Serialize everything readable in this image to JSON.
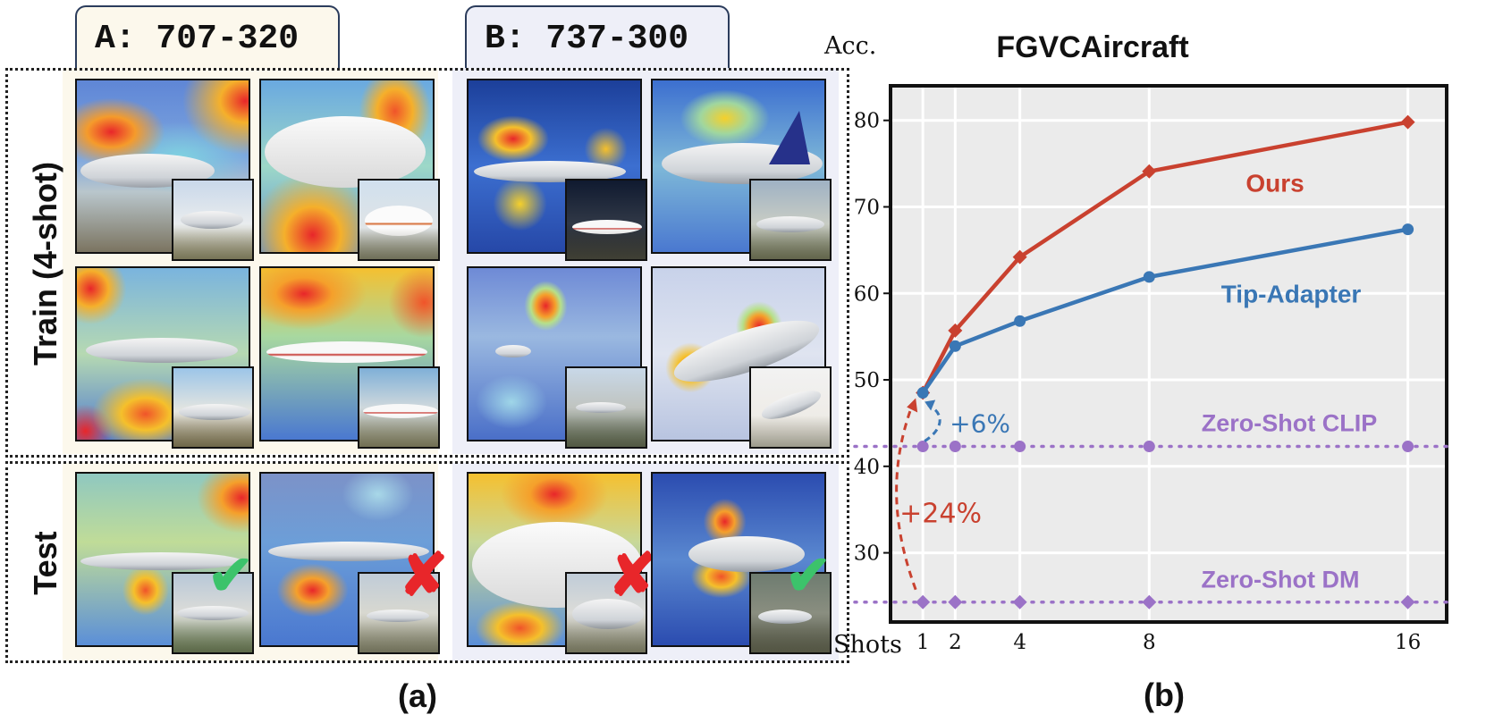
{
  "panel_a": {
    "tab_a": "A: 707-320",
    "tab_b": "B: 737-300",
    "train_label": "Train (4-shot)",
    "test_label": "Test",
    "caption": "(a)",
    "check_glyph": "✔",
    "cross_glyph": "✘",
    "icons": [
      "check-icon",
      "cross-icon"
    ],
    "colors": {
      "heat_red": "#e8262a",
      "heat_blue": "#3b5bd6",
      "check": "#3cc36b",
      "cross": "#e8262a",
      "group_a_bg": "#fcf8ec",
      "group_b_bg": "#eeeff8"
    }
  },
  "chart_data": {
    "type": "line",
    "title": "FGVCAircraft",
    "xlabel": "Shots",
    "ylabel": "Acc.",
    "x": [
      1,
      2,
      4,
      8,
      16
    ],
    "xticks": [
      "1",
      "2",
      "4",
      "8",
      "16"
    ],
    "yticks": [
      "30",
      "40",
      "50",
      "60",
      "70",
      "80"
    ],
    "ylim": [
      22,
      84
    ],
    "grid": true,
    "series": [
      {
        "name": "Ours",
        "values": [
          48.5,
          55.7,
          64.2,
          74.1,
          79.8
        ],
        "color": "#c9412f",
        "marker": "diamond",
        "style": "solid"
      },
      {
        "name": "Tip-Adapter",
        "values": [
          48.5,
          53.9,
          56.8,
          61.9,
          67.4
        ],
        "color": "#3a77b5",
        "marker": "circle",
        "style": "solid"
      },
      {
        "name": "Zero-Shot CLIP",
        "values": [
          42.3,
          42.3,
          42.3,
          42.3,
          42.3
        ],
        "color": "#9b72c7",
        "marker": "circle",
        "style": "dotted"
      },
      {
        "name": "Zero-Shot DM",
        "values": [
          24.3,
          24.3,
          24.3,
          24.3,
          24.3
        ],
        "color": "#9b72c7",
        "marker": "diamond",
        "style": "dotted"
      }
    ],
    "annotations": [
      {
        "text": "+6%",
        "color": "#3a77b5"
      },
      {
        "text": "+24%",
        "color": "#c9412f"
      }
    ],
    "caption": "(b)"
  }
}
